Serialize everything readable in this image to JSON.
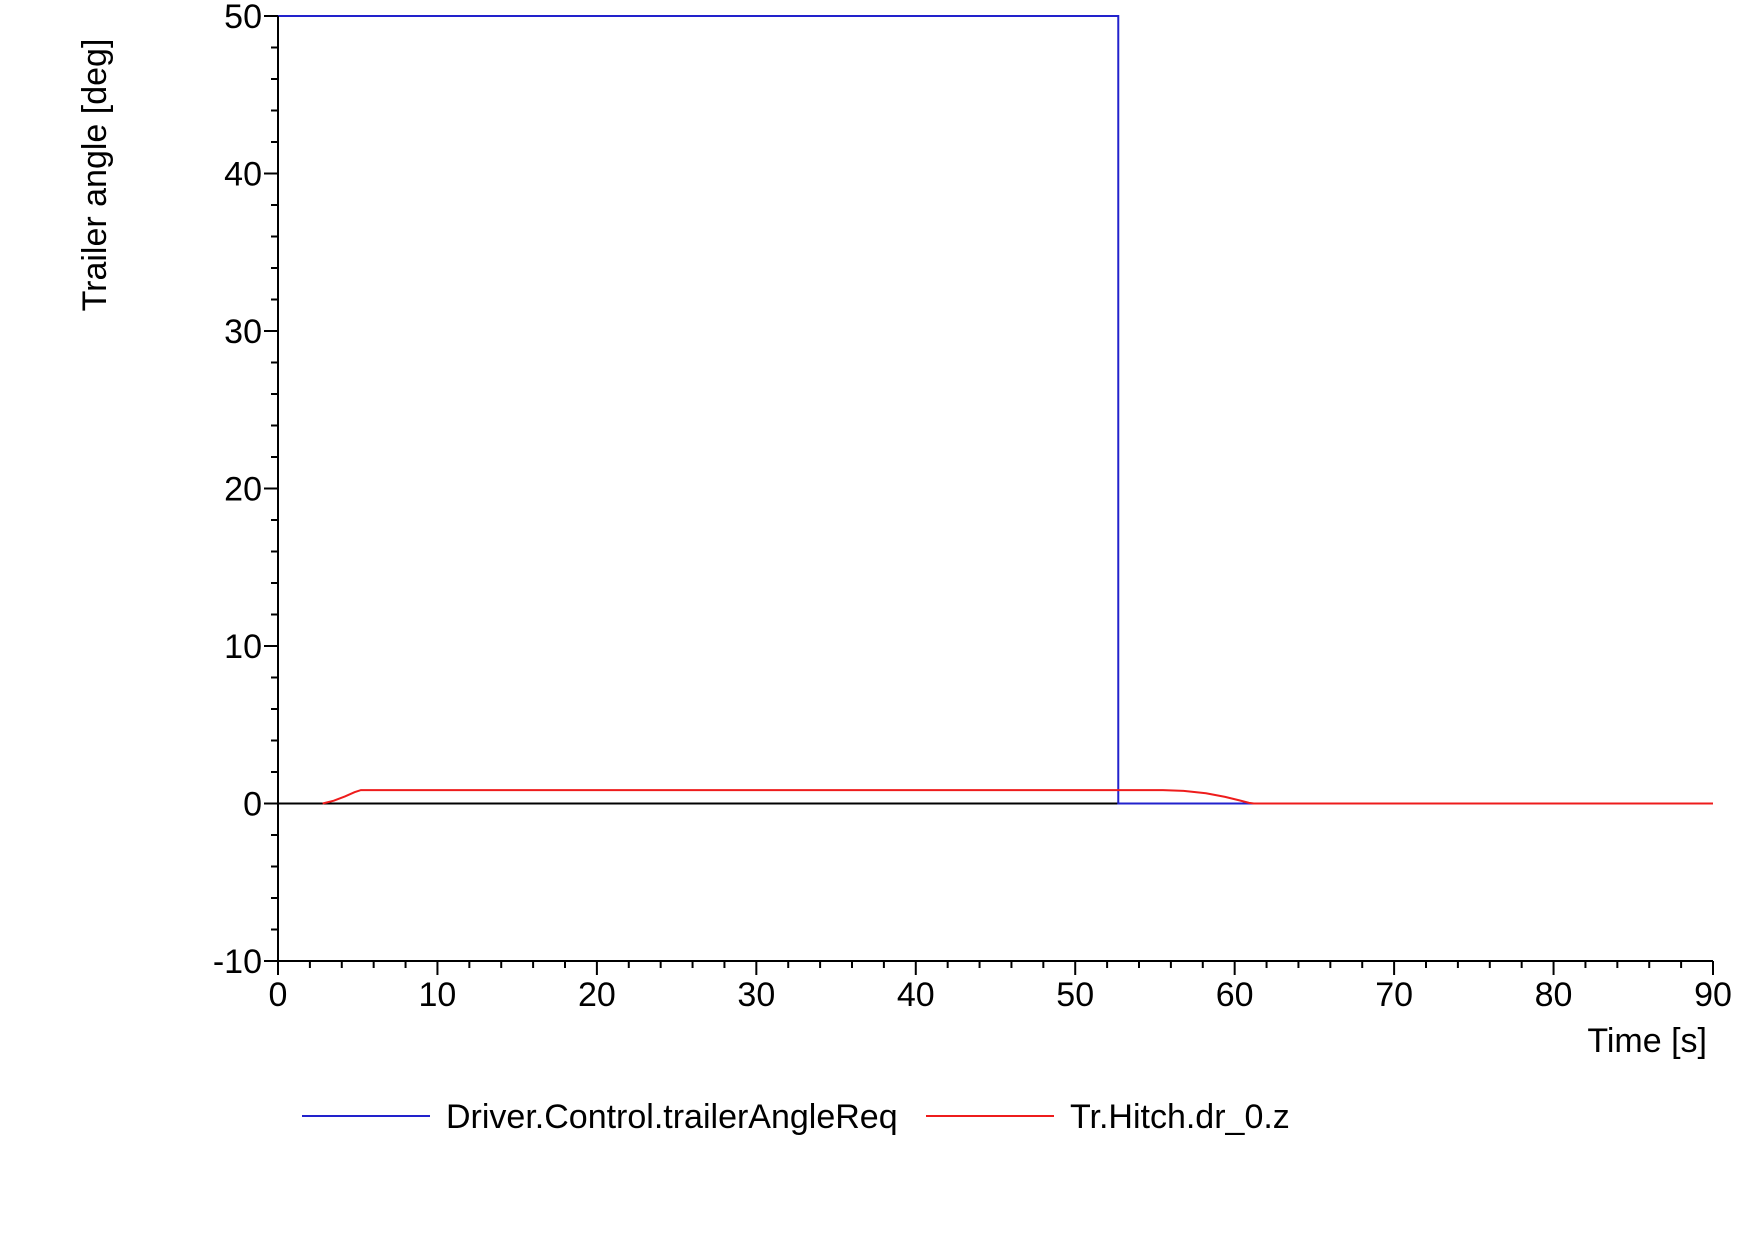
{
  "chart_data": {
    "type": "line",
    "title": "",
    "xlabel": "Time [s]",
    "ylabel": "Trailer angle [deg]",
    "xlim": [
      0,
      90
    ],
    "ylim": [
      -10,
      50
    ],
    "grid": false,
    "legend_position": "bottom",
    "x_ticks": [
      0,
      10,
      20,
      30,
      40,
      50,
      60,
      70,
      80,
      90
    ],
    "x_tick_labels": [
      "0",
      "10",
      "20",
      "30",
      "40",
      "50",
      "60",
      "70",
      "80",
      "90"
    ],
    "y_ticks": [
      -10,
      0,
      10,
      20,
      30,
      40,
      50
    ],
    "y_tick_labels": [
      "-10",
      "0",
      "10",
      "20",
      "30",
      "40",
      "50"
    ],
    "x_minor_step": 2,
    "y_minor_step": 2,
    "zero_line": true,
    "series": [
      {
        "name": "Driver.Control.trailerAngleReq",
        "color": "#2222cc",
        "x": [
          0,
          52.7,
          52.7,
          90
        ],
        "y": [
          50,
          50,
          0,
          0
        ]
      },
      {
        "name": "Tr.Hitch.dr_0.z",
        "color": "#ee1c1c",
        "x": [
          2.8,
          3.5,
          4.2,
          4.8,
          5.2,
          10,
          20,
          30,
          40,
          50,
          55.5,
          56.8,
          58.2,
          59.4,
          60.3,
          60.9,
          61.2,
          90
        ],
        "y": [
          0,
          0.18,
          0.45,
          0.72,
          0.85,
          0.85,
          0.85,
          0.85,
          0.85,
          0.85,
          0.85,
          0.8,
          0.65,
          0.42,
          0.2,
          0.04,
          0,
          0
        ]
      }
    ]
  }
}
